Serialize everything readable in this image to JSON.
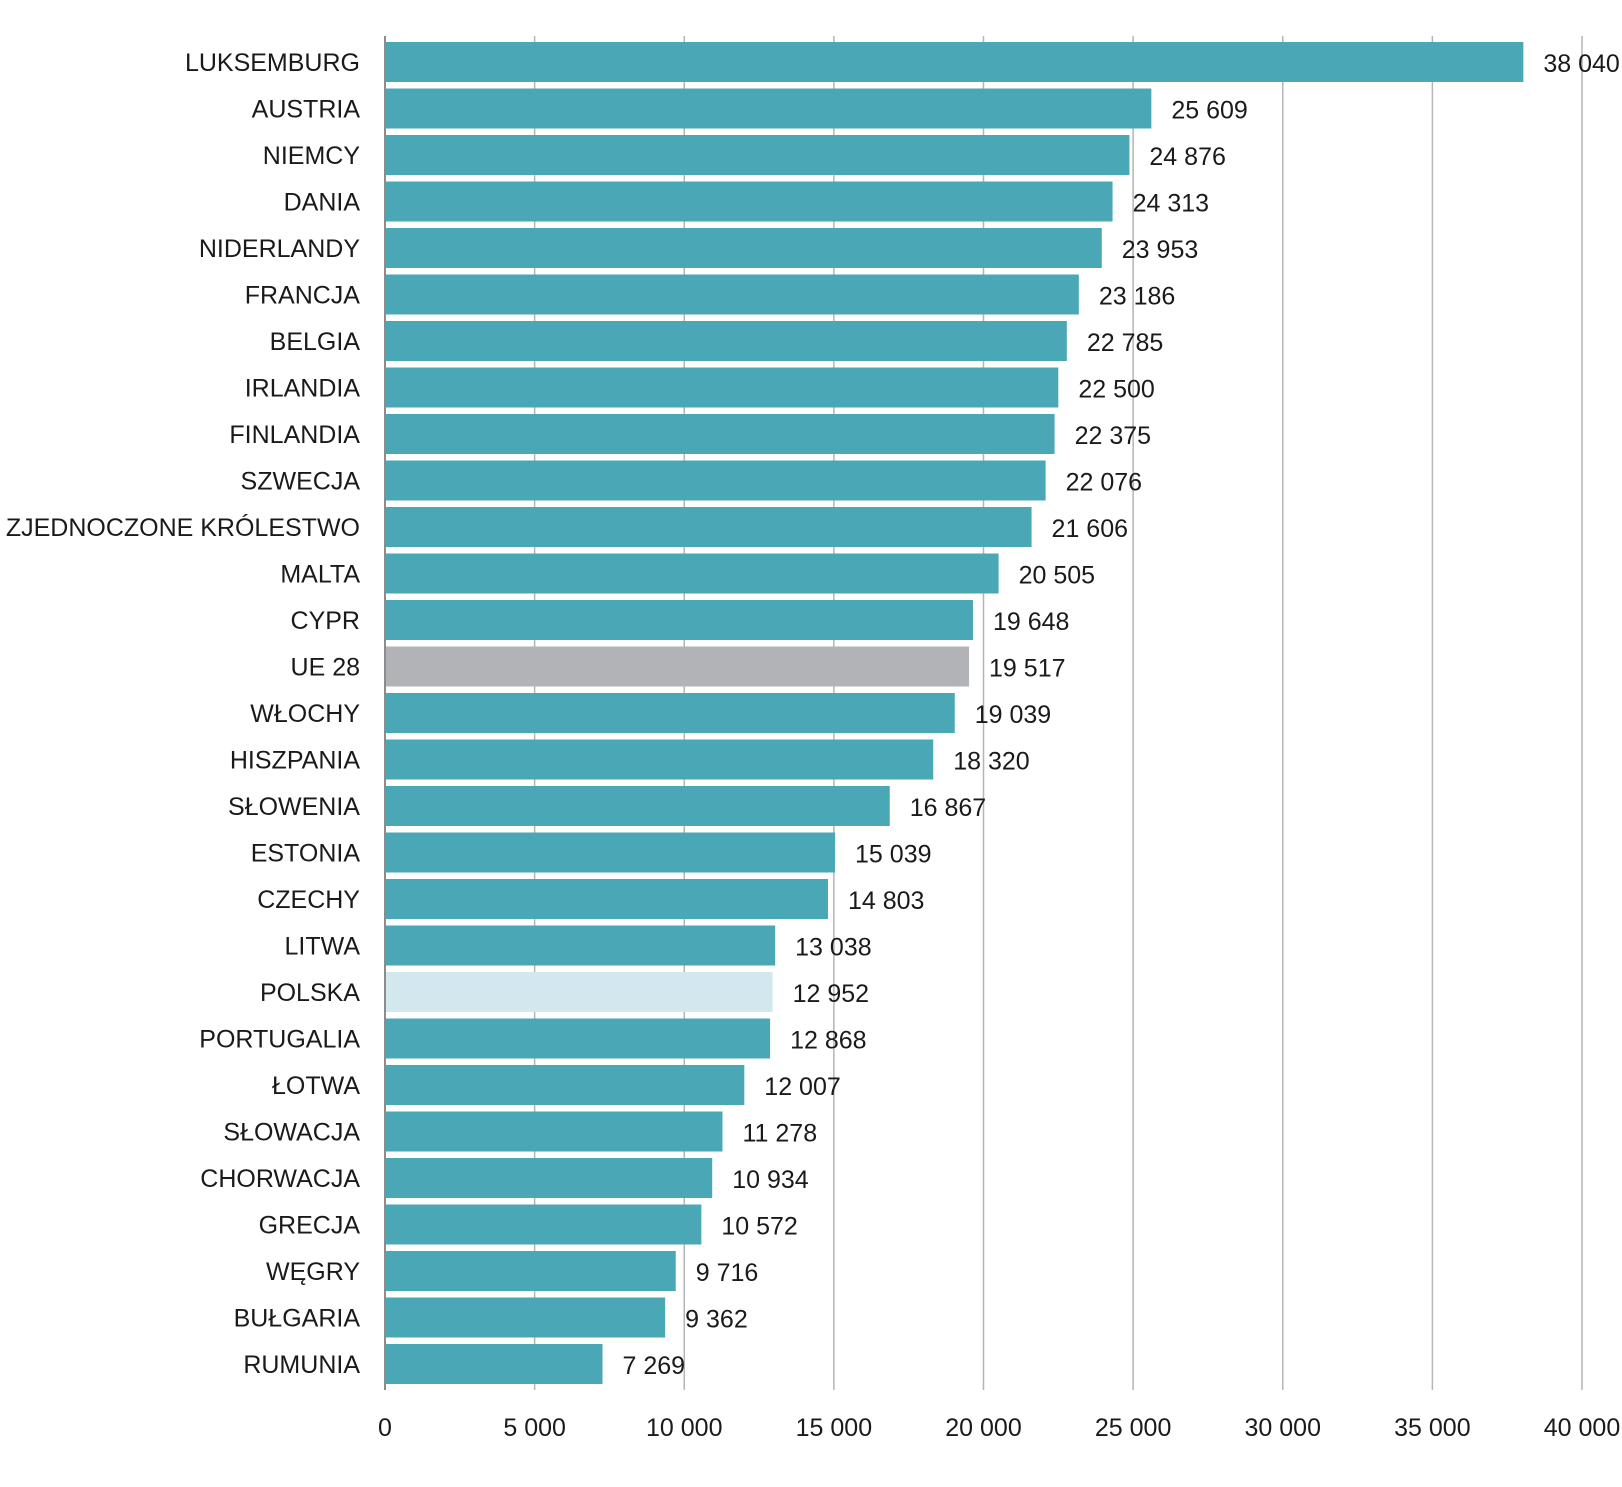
{
  "chart_data": {
    "type": "bar",
    "orientation": "horizontal",
    "title": "",
    "xlabel": "",
    "ylabel": "",
    "xlim": [
      0,
      40000
    ],
    "x_ticks": [
      0,
      5000,
      10000,
      15000,
      20000,
      25000,
      30000,
      35000,
      40000
    ],
    "x_tick_labels": [
      "0",
      "5 000",
      "10 000",
      "15 000",
      "20 000",
      "25 000",
      "30 000",
      "35 000",
      "40 000"
    ],
    "grid": "vertical",
    "legend": "none",
    "categories": [
      "LUKSEMBURG",
      "AUSTRIA",
      "NIEMCY",
      "DANIA",
      "NIDERLANDY",
      "FRANCJA",
      "BELGIA",
      "IRLANDIA",
      "FINLANDIA",
      "SZWECJA",
      "ZJEDNOCZONE KRÓLESTWO",
      "MALTA",
      "CYPR",
      "UE 28",
      "WŁOCHY",
      "HISZPANIA",
      "SŁOWENIA",
      "ESTONIA",
      "CZECHY",
      "LITWA",
      "POLSKA",
      "PORTUGALIA",
      "ŁOTWA",
      "SŁOWACJA",
      "CHORWACJA",
      "GRECJA",
      "WĘGRY",
      "BUŁGARIA",
      "RUMUNIA"
    ],
    "values": [
      38040,
      25609,
      24876,
      24313,
      23953,
      23186,
      22785,
      22500,
      22375,
      22076,
      21606,
      20505,
      19648,
      19517,
      19039,
      18320,
      16867,
      15039,
      14803,
      13038,
      12952,
      12868,
      12007,
      11278,
      10934,
      10572,
      9716,
      9362,
      7269
    ],
    "value_labels": [
      "38 040",
      "25 609",
      "24 876",
      "24 313",
      "23 953",
      "23 186",
      "22 785",
      "22 500",
      "22 375",
      "22 076",
      "21 606",
      "20 505",
      "19 648",
      "19 517",
      "19 039",
      "18 320",
      "16 867",
      "15 039",
      "14 803",
      "13 038",
      "12 952",
      "12 868",
      "12 007",
      "11 278",
      "10 934",
      "10 572",
      "9 716",
      "9 362",
      "7 269"
    ],
    "colors": {
      "default": "#4aa8b6",
      "UE 28": "#b2b3b6",
      "POLSKA": "#d3e8ee"
    },
    "gridline_color": "#b5b5b5"
  }
}
